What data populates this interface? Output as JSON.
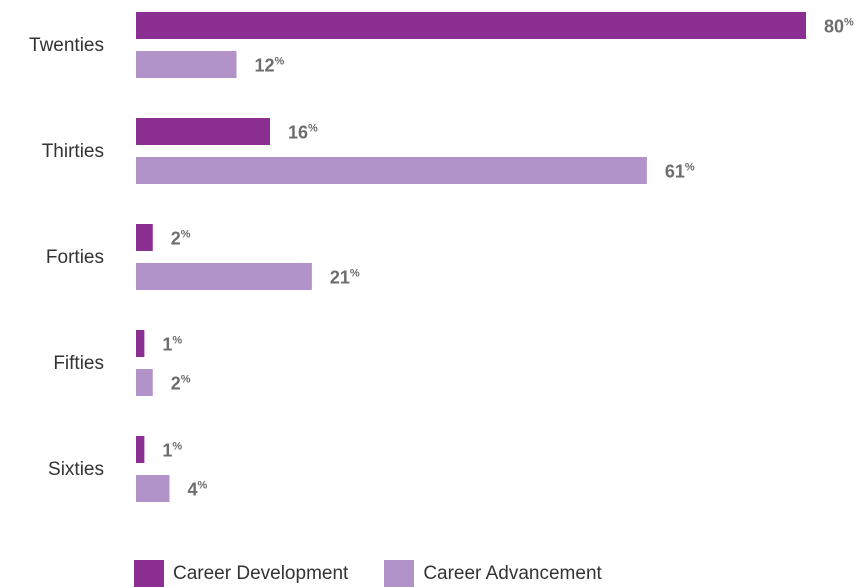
{
  "chart_data": {
    "type": "bar",
    "orientation": "horizontal",
    "categories": [
      "Twenties",
      "Thirties",
      "Forties",
      "Fifties",
      "Sixties"
    ],
    "series": [
      {
        "name": "Career Development",
        "values": [
          80,
          16,
          2,
          1,
          1
        ],
        "color": "#8b2f92"
      },
      {
        "name": "Career Advancement",
        "values": [
          12,
          61,
          21,
          2,
          4
        ],
        "color": "#b293c9"
      }
    ],
    "value_suffix": "%",
    "xlim": [
      0,
      80
    ],
    "grid": false,
    "legend": "bottom-left"
  }
}
